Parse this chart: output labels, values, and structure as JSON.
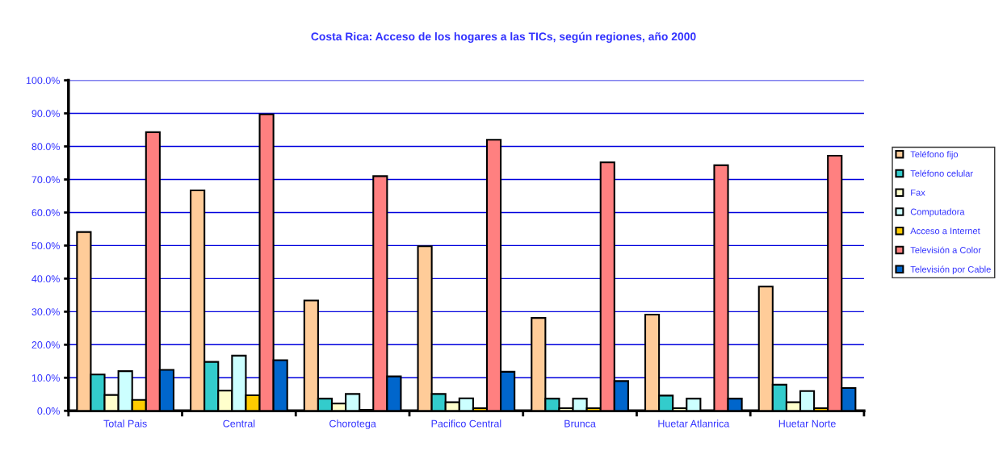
{
  "chart_data": {
    "type": "bar",
    "title": "Costa Rica: Acceso de los hogares a las TICs, según regiones, año 2000",
    "categories": [
      "Total Pais",
      "Central",
      "Chorotega",
      "Pacifico Central",
      "Brunca",
      "Huetar Atlanrica",
      "Huetar Norte"
    ],
    "series": [
      {
        "name": "Teléfono fijo",
        "color": "#ffcc99",
        "values": [
          54.1,
          66.7,
          33.4,
          49.8,
          28.1,
          29.1,
          37.6
        ]
      },
      {
        "name": "Teléfono celular",
        "color": "#33cccc",
        "values": [
          11.0,
          14.8,
          3.7,
          5.1,
          3.7,
          4.6,
          7.9
        ]
      },
      {
        "name": "Fax",
        "color": "#ffffcc",
        "values": [
          4.8,
          6.1,
          2.2,
          2.6,
          0.8,
          0.8,
          2.6
        ]
      },
      {
        "name": "Computadora",
        "color": "#ccffff",
        "values": [
          12.0,
          16.7,
          5.1,
          3.8,
          3.7,
          3.7,
          6.0
        ]
      },
      {
        "name": "Acceso a Internet",
        "color": "#ffcc00",
        "values": [
          3.3,
          4.7,
          0.3,
          0.8,
          0.8,
          null,
          0.8
        ]
      },
      {
        "name": "Televisión a Color",
        "color": "#ff8080",
        "values": [
          84.3,
          89.7,
          71.0,
          82.0,
          75.2,
          74.3,
          77.2
        ]
      },
      {
        "name": "Televisión por Cable",
        "color": "#0066cc",
        "values": [
          12.4,
          15.3,
          10.4,
          11.8,
          9.0,
          3.7,
          6.9
        ]
      }
    ],
    "ylim": [
      0,
      100
    ],
    "yticks": [
      {
        "value": 0,
        "label": "0.0%"
      },
      {
        "value": 10,
        "label": "10.0%"
      },
      {
        "value": 20,
        "label": "20.0%"
      },
      {
        "value": 30,
        "label": "30.0%"
      },
      {
        "value": 40,
        "label": "40.0%"
      },
      {
        "value": 50,
        "label": "50.0%"
      },
      {
        "value": 60,
        "label": "60.0%"
      },
      {
        "value": 70,
        "label": "70.0%"
      },
      {
        "value": 80,
        "label": "80.0%"
      },
      {
        "value": 90,
        "label": "90.0%"
      },
      {
        "value": 100,
        "label": "100.0%"
      }
    ],
    "grid": "y",
    "legend": "right"
  }
}
